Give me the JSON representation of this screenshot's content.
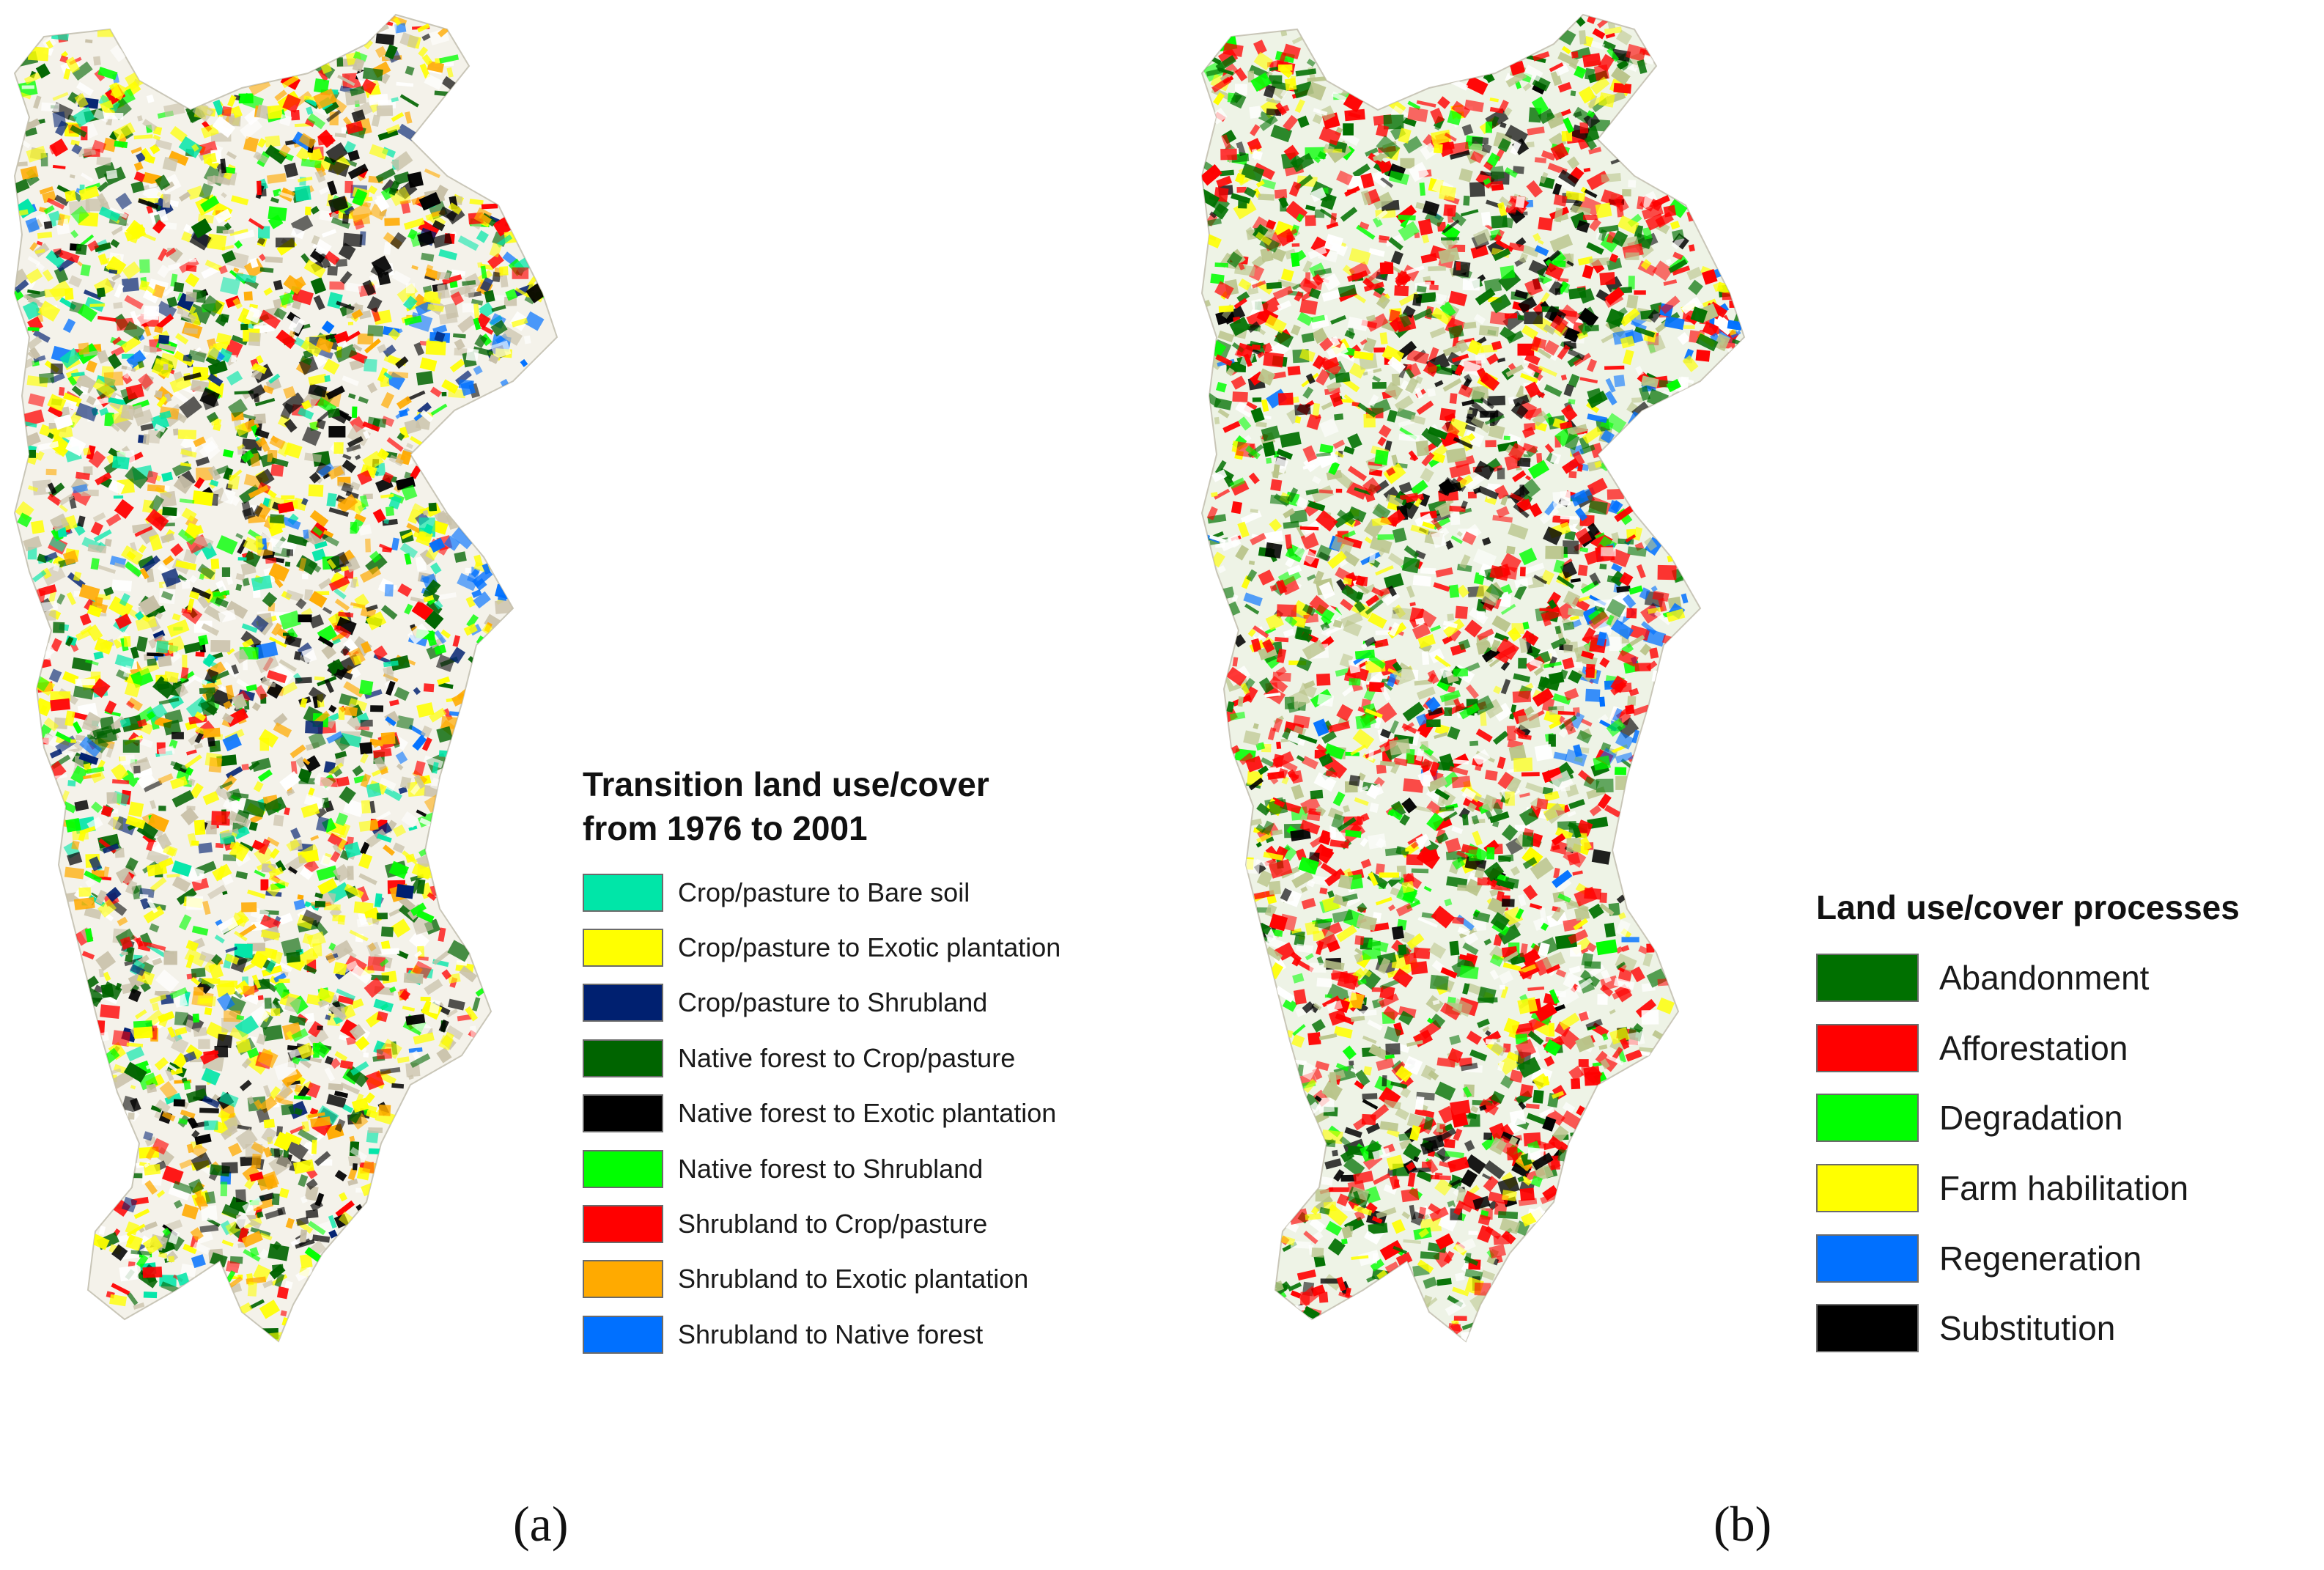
{
  "panel_a": {
    "label": "(a)",
    "legend_title_line1": "Transition land use/cover",
    "legend_title_line2": "from 1976 to 2001",
    "items": [
      {
        "label": "Crop/pasture to Bare soil",
        "color": "#00e6a8"
      },
      {
        "label": "Crop/pasture to Exotic plantation",
        "color": "#ffff00"
      },
      {
        "label": "Crop/pasture to Shrubland",
        "color": "#002070"
      },
      {
        "label": "Native forest to Crop/pasture",
        "color": "#006400"
      },
      {
        "label": "Native forest to Exotic plantation",
        "color": "#000000"
      },
      {
        "label": "Native forest to Shrubland",
        "color": "#00ff00"
      },
      {
        "label": "Shrubland to Crop/pasture",
        "color": "#ff0000"
      },
      {
        "label": "Shrubland to Exotic plantation",
        "color": "#ffaa00"
      },
      {
        "label": "Shrubland to Native forest",
        "color": "#0070ff"
      }
    ]
  },
  "panel_b": {
    "label": "(b)",
    "legend_title": "Land use/cover processes",
    "items": [
      {
        "label": "Abandonment",
        "color": "#007000"
      },
      {
        "label": "Afforestation",
        "color": "#ff0000"
      },
      {
        "label": "Degradation",
        "color": "#00ff00"
      },
      {
        "label": "Farm habilitation",
        "color": "#ffff00"
      },
      {
        "label": "Regeneration",
        "color": "#0070ff"
      },
      {
        "label": "Substitution",
        "color": "#000000"
      }
    ]
  }
}
